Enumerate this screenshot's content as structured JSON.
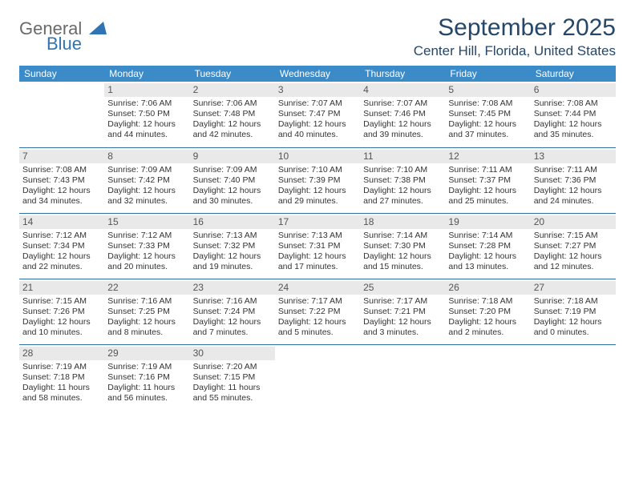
{
  "logo": {
    "word1": "General",
    "word2": "Blue",
    "tri_color": "#2f74b5",
    "text_gray": "#6a6a6a"
  },
  "title": "September 2025",
  "location": "Center Hill, Florida, United States",
  "colors": {
    "header_bg": "#3b8bc9",
    "header_text": "#ffffff",
    "rule": "#2f6fa3",
    "daynum_bg": "#e9e9e9",
    "title_color": "#25476a",
    "body_text": "#333333"
  },
  "weekdays": [
    "Sunday",
    "Monday",
    "Tuesday",
    "Wednesday",
    "Thursday",
    "Friday",
    "Saturday"
  ],
  "weeks": [
    [
      {
        "n": "",
        "sr": "",
        "ss": "",
        "dl": ""
      },
      {
        "n": "1",
        "sr": "Sunrise: 7:06 AM",
        "ss": "Sunset: 7:50 PM",
        "dl": "Daylight: 12 hours and 44 minutes."
      },
      {
        "n": "2",
        "sr": "Sunrise: 7:06 AM",
        "ss": "Sunset: 7:48 PM",
        "dl": "Daylight: 12 hours and 42 minutes."
      },
      {
        "n": "3",
        "sr": "Sunrise: 7:07 AM",
        "ss": "Sunset: 7:47 PM",
        "dl": "Daylight: 12 hours and 40 minutes."
      },
      {
        "n": "4",
        "sr": "Sunrise: 7:07 AM",
        "ss": "Sunset: 7:46 PM",
        "dl": "Daylight: 12 hours and 39 minutes."
      },
      {
        "n": "5",
        "sr": "Sunrise: 7:08 AM",
        "ss": "Sunset: 7:45 PM",
        "dl": "Daylight: 12 hours and 37 minutes."
      },
      {
        "n": "6",
        "sr": "Sunrise: 7:08 AM",
        "ss": "Sunset: 7:44 PM",
        "dl": "Daylight: 12 hours and 35 minutes."
      }
    ],
    [
      {
        "n": "7",
        "sr": "Sunrise: 7:08 AM",
        "ss": "Sunset: 7:43 PM",
        "dl": "Daylight: 12 hours and 34 minutes."
      },
      {
        "n": "8",
        "sr": "Sunrise: 7:09 AM",
        "ss": "Sunset: 7:42 PM",
        "dl": "Daylight: 12 hours and 32 minutes."
      },
      {
        "n": "9",
        "sr": "Sunrise: 7:09 AM",
        "ss": "Sunset: 7:40 PM",
        "dl": "Daylight: 12 hours and 30 minutes."
      },
      {
        "n": "10",
        "sr": "Sunrise: 7:10 AM",
        "ss": "Sunset: 7:39 PM",
        "dl": "Daylight: 12 hours and 29 minutes."
      },
      {
        "n": "11",
        "sr": "Sunrise: 7:10 AM",
        "ss": "Sunset: 7:38 PM",
        "dl": "Daylight: 12 hours and 27 minutes."
      },
      {
        "n": "12",
        "sr": "Sunrise: 7:11 AM",
        "ss": "Sunset: 7:37 PM",
        "dl": "Daylight: 12 hours and 25 minutes."
      },
      {
        "n": "13",
        "sr": "Sunrise: 7:11 AM",
        "ss": "Sunset: 7:36 PM",
        "dl": "Daylight: 12 hours and 24 minutes."
      }
    ],
    [
      {
        "n": "14",
        "sr": "Sunrise: 7:12 AM",
        "ss": "Sunset: 7:34 PM",
        "dl": "Daylight: 12 hours and 22 minutes."
      },
      {
        "n": "15",
        "sr": "Sunrise: 7:12 AM",
        "ss": "Sunset: 7:33 PM",
        "dl": "Daylight: 12 hours and 20 minutes."
      },
      {
        "n": "16",
        "sr": "Sunrise: 7:13 AM",
        "ss": "Sunset: 7:32 PM",
        "dl": "Daylight: 12 hours and 19 minutes."
      },
      {
        "n": "17",
        "sr": "Sunrise: 7:13 AM",
        "ss": "Sunset: 7:31 PM",
        "dl": "Daylight: 12 hours and 17 minutes."
      },
      {
        "n": "18",
        "sr": "Sunrise: 7:14 AM",
        "ss": "Sunset: 7:30 PM",
        "dl": "Daylight: 12 hours and 15 minutes."
      },
      {
        "n": "19",
        "sr": "Sunrise: 7:14 AM",
        "ss": "Sunset: 7:28 PM",
        "dl": "Daylight: 12 hours and 13 minutes."
      },
      {
        "n": "20",
        "sr": "Sunrise: 7:15 AM",
        "ss": "Sunset: 7:27 PM",
        "dl": "Daylight: 12 hours and 12 minutes."
      }
    ],
    [
      {
        "n": "21",
        "sr": "Sunrise: 7:15 AM",
        "ss": "Sunset: 7:26 PM",
        "dl": "Daylight: 12 hours and 10 minutes."
      },
      {
        "n": "22",
        "sr": "Sunrise: 7:16 AM",
        "ss": "Sunset: 7:25 PM",
        "dl": "Daylight: 12 hours and 8 minutes."
      },
      {
        "n": "23",
        "sr": "Sunrise: 7:16 AM",
        "ss": "Sunset: 7:24 PM",
        "dl": "Daylight: 12 hours and 7 minutes."
      },
      {
        "n": "24",
        "sr": "Sunrise: 7:17 AM",
        "ss": "Sunset: 7:22 PM",
        "dl": "Daylight: 12 hours and 5 minutes."
      },
      {
        "n": "25",
        "sr": "Sunrise: 7:17 AM",
        "ss": "Sunset: 7:21 PM",
        "dl": "Daylight: 12 hours and 3 minutes."
      },
      {
        "n": "26",
        "sr": "Sunrise: 7:18 AM",
        "ss": "Sunset: 7:20 PM",
        "dl": "Daylight: 12 hours and 2 minutes."
      },
      {
        "n": "27",
        "sr": "Sunrise: 7:18 AM",
        "ss": "Sunset: 7:19 PM",
        "dl": "Daylight: 12 hours and 0 minutes."
      }
    ],
    [
      {
        "n": "28",
        "sr": "Sunrise: 7:19 AM",
        "ss": "Sunset: 7:18 PM",
        "dl": "Daylight: 11 hours and 58 minutes."
      },
      {
        "n": "29",
        "sr": "Sunrise: 7:19 AM",
        "ss": "Sunset: 7:16 PM",
        "dl": "Daylight: 11 hours and 56 minutes."
      },
      {
        "n": "30",
        "sr": "Sunrise: 7:20 AM",
        "ss": "Sunset: 7:15 PM",
        "dl": "Daylight: 11 hours and 55 minutes."
      },
      {
        "n": "",
        "sr": "",
        "ss": "",
        "dl": ""
      },
      {
        "n": "",
        "sr": "",
        "ss": "",
        "dl": ""
      },
      {
        "n": "",
        "sr": "",
        "ss": "",
        "dl": ""
      },
      {
        "n": "",
        "sr": "",
        "ss": "",
        "dl": ""
      }
    ]
  ]
}
